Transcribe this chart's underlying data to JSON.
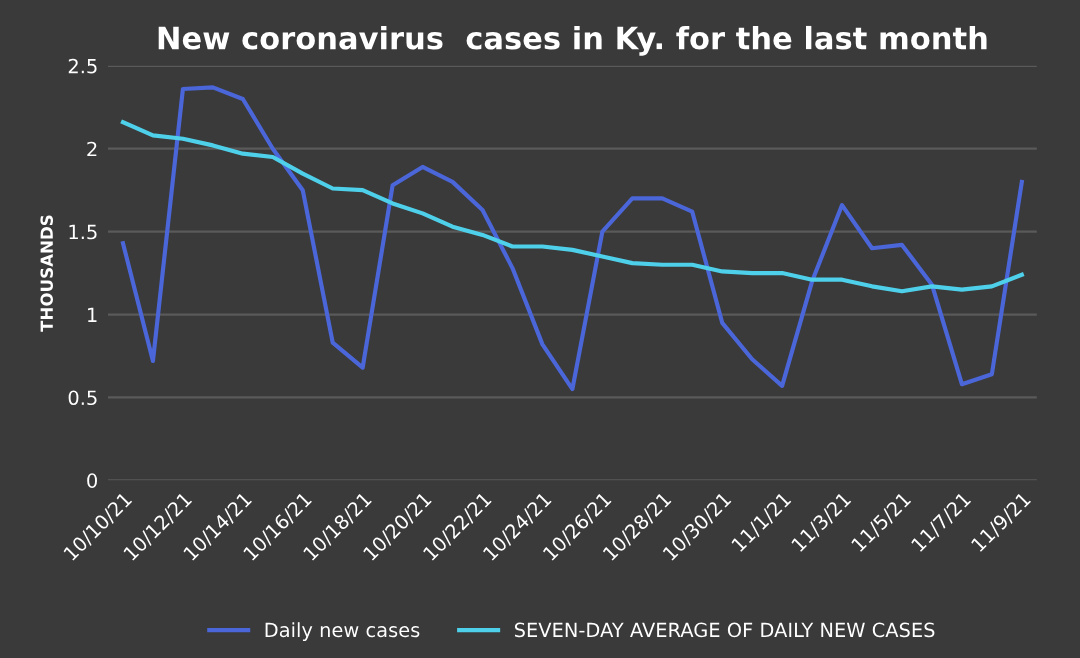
{
  "chart_data": {
    "type": "line",
    "title": "New coronavirus  cases in Ky. for the last month",
    "ylabel": "THOUSANDS",
    "categories": [
      "10/10/21",
      null,
      "10/12/21",
      null,
      "10/14/21",
      null,
      "10/16/21",
      null,
      "10/18/21",
      null,
      "10/20/21",
      null,
      "10/22/21",
      null,
      "10/24/21",
      null,
      "10/26/21",
      null,
      "10/28/21",
      null,
      "10/30/21",
      null,
      "11/1/21",
      null,
      "11/3/21",
      null,
      "11/5/21",
      null,
      "11/7/21",
      null,
      "11/9/21"
    ],
    "series": [
      {
        "name": "Daily new cases",
        "color": "#4a66d8",
        "values": [
          1.43,
          0.72,
          2.36,
          2.37,
          2.3,
          2.0,
          1.75,
          0.83,
          0.68,
          1.78,
          1.89,
          1.8,
          1.63,
          1.28,
          0.82,
          0.55,
          1.5,
          1.7,
          1.7,
          1.62,
          0.95,
          0.73,
          0.57,
          1.2,
          1.66,
          1.4,
          1.42,
          1.18,
          0.58,
          0.64,
          1.8
        ]
      },
      {
        "name": "SEVEN-DAY AVERAGE OF DAILY NEW CASES",
        "color": "#4fd0ea",
        "values": [
          2.16,
          2.08,
          2.06,
          2.02,
          1.97,
          1.95,
          1.85,
          1.76,
          1.75,
          1.67,
          1.61,
          1.53,
          1.48,
          1.41,
          1.41,
          1.39,
          1.35,
          1.31,
          1.3,
          1.3,
          1.26,
          1.25,
          1.25,
          1.21,
          1.21,
          1.17,
          1.14,
          1.17,
          1.15,
          1.17,
          1.24
        ]
      }
    ],
    "ylim": [
      0,
      2.5
    ],
    "yticks": [
      0,
      0.5,
      1,
      1.5,
      2,
      2.5
    ],
    "grid": "y",
    "legend": "bottom",
    "marker": "none",
    "line_style": "solid"
  }
}
